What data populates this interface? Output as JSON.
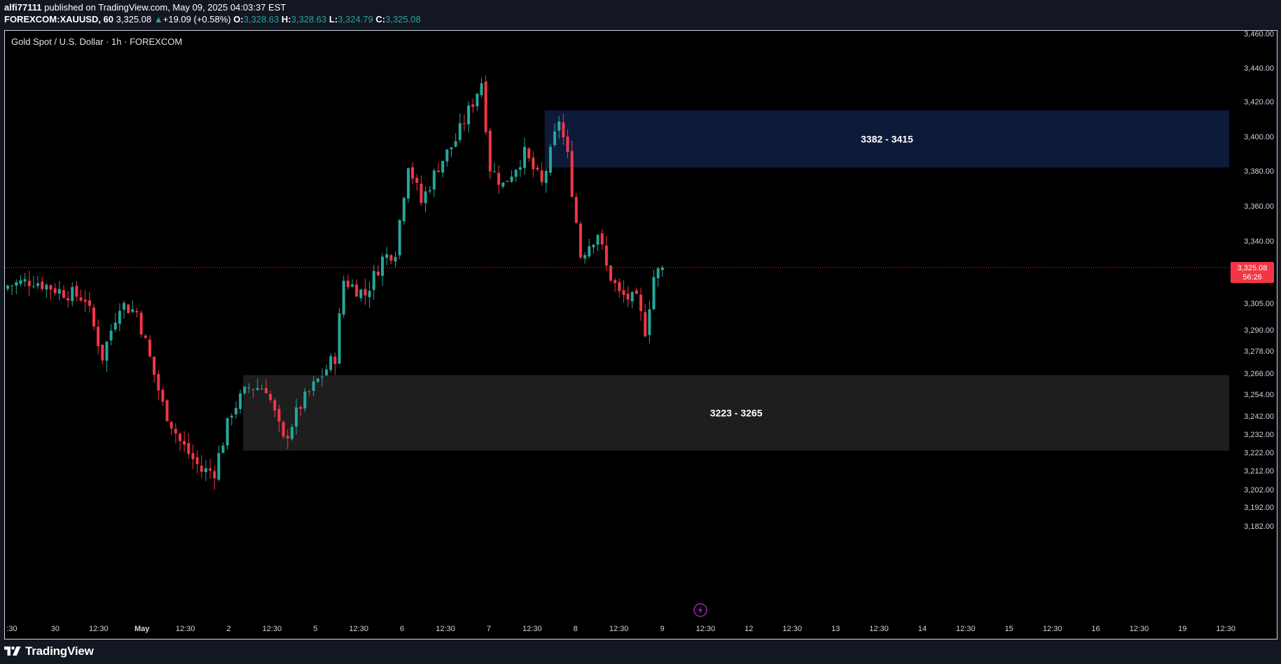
{
  "header": {
    "author": "alfi77111",
    "published_text": " published on TradingView.com, May 09, 2025 04:03:37 EST",
    "symbol_text": "FOREXCOM:XAUUSD, 60 ",
    "last_price": "3,325.08",
    "change_text": "+19.09 (+0.58%)",
    "o_label": "O:",
    "o_value": "3,328.63",
    "h_label": "H:",
    "h_value": "3,328.63",
    "l_label": "L:",
    "l_value": "3,324.79",
    "c_label": "C:",
    "c_value": "3,325.08"
  },
  "chart": {
    "title": "Gold Spot / U.S. Dollar · 1h · FOREXCOM",
    "price_label": "3,325.08",
    "countdown": "56:26",
    "colors": {
      "up": "#26a69a",
      "down": "#f23645",
      "price_line": "#f23645",
      "supply_zone": "#0d1a3a",
      "demand_zone": "#1e1e1e",
      "background": "#000000"
    },
    "y_ticks": [
      {
        "price": 3460,
        "label": "3,460.00"
      },
      {
        "price": 3440,
        "label": "3,440.00"
      },
      {
        "price": 3420,
        "label": "3,420.00"
      },
      {
        "price": 3400,
        "label": "3,400.00"
      },
      {
        "price": 3380,
        "label": "3,380.00"
      },
      {
        "price": 3360,
        "label": "3,360.00"
      },
      {
        "price": 3340,
        "label": "3,340.00"
      },
      {
        "price": 3305,
        "label": "3,305.00"
      },
      {
        "price": 3290,
        "label": "3,290.00"
      },
      {
        "price": 3278,
        "label": "3,278.00"
      },
      {
        "price": 3266,
        "label": "3,266.00"
      },
      {
        "price": 3254,
        "label": "3,254.00"
      },
      {
        "price": 3242,
        "label": "3,242.00"
      },
      {
        "price": 3232,
        "label": "3,232.00"
      },
      {
        "price": 3222,
        "label": "3,222.00"
      },
      {
        "price": 3212,
        "label": "3,212.00"
      },
      {
        "price": 3202,
        "label": "3,202.00"
      },
      {
        "price": 3192,
        "label": "3,192.00"
      },
      {
        "price": 3182,
        "label": "3,182.00"
      }
    ],
    "x_ticks": [
      ":30",
      "30",
      "12:30",
      "May",
      "12:30",
      "2",
      "12:30",
      "5",
      "12:30",
      "6",
      "12:30",
      "7",
      "12:30",
      "8",
      "12:30",
      "9",
      "12:30",
      "12",
      "12:30",
      "13",
      "12:30",
      "14",
      "12:30",
      "15",
      "12:30",
      "16",
      "12:30",
      "19",
      "12:30"
    ],
    "x_tick_bold": [
      "May"
    ],
    "zones": [
      {
        "label": "3382 - 3415",
        "low": 3382,
        "high": 3415,
        "start_candle": 125,
        "color": "#0d1a3a"
      },
      {
        "label": "3223 - 3265",
        "low": 3223,
        "high": 3265,
        "start_candle": 55,
        "color": "#1e1e1e"
      }
    ],
    "current_price": 3325.08
  },
  "chart_data": {
    "type": "candlestick",
    "title": "Gold Spot / U.S. Dollar · 1h · FOREXCOM",
    "x_tick_labels": [
      ":30",
      "30",
      "12:30",
      "May",
      "12:30",
      "2",
      "12:30",
      "5",
      "12:30",
      "6",
      "12:30",
      "7",
      "12:30",
      "8",
      "12:30",
      "9",
      "12:30"
    ],
    "ylim": [
      3176,
      3466
    ],
    "close_path": [
      [
        0,
        3315
      ],
      [
        6,
        3318
      ],
      [
        12,
        3312
      ],
      [
        18,
        3308
      ],
      [
        22,
        3275
      ],
      [
        26,
        3305
      ],
      [
        30,
        3300
      ],
      [
        36,
        3248
      ],
      [
        40,
        3228
      ],
      [
        45,
        3212
      ],
      [
        48,
        3212
      ],
      [
        52,
        3245
      ],
      [
        56,
        3258
      ],
      [
        60,
        3258
      ],
      [
        64,
        3228
      ],
      [
        68,
        3248
      ],
      [
        72,
        3262
      ],
      [
        76,
        3275
      ],
      [
        78,
        3318
      ],
      [
        83,
        3310
      ],
      [
        87,
        3330
      ],
      [
        90,
        3335
      ],
      [
        93,
        3385
      ],
      [
        96,
        3362
      ],
      [
        100,
        3383
      ],
      [
        104,
        3398
      ],
      [
        108,
        3420
      ],
      [
        110,
        3432
      ],
      [
        112,
        3382
      ],
      [
        115,
        3372
      ],
      [
        120,
        3390
      ],
      [
        124,
        3372
      ],
      [
        126,
        3390
      ],
      [
        128,
        3410
      ],
      [
        130,
        3388
      ],
      [
        133,
        3332
      ],
      [
        137,
        3345
      ],
      [
        139,
        3325
      ],
      [
        142,
        3310
      ],
      [
        146,
        3306
      ],
      [
        148,
        3290
      ],
      [
        150,
        3320
      ],
      [
        152,
        3325
      ]
    ],
    "current_price": 3325.08,
    "zones": [
      {
        "label": "3382 - 3415",
        "low": 3382,
        "high": 3415
      },
      {
        "label": "3223 - 3265",
        "low": 3223,
        "high": 3265
      }
    ]
  },
  "footer": {
    "brand": "TradingView"
  }
}
